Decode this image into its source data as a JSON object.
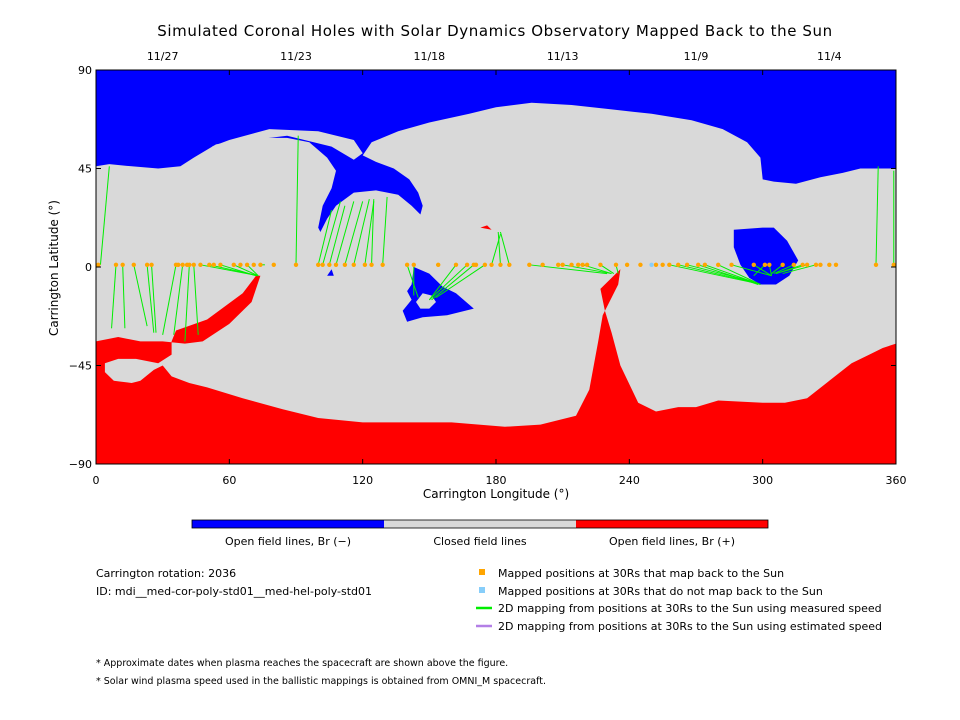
{
  "chart_data": {
    "type": "heatmap",
    "title": "Simulated Coronal Holes with Solar Dynamics Observatory Mapped Back to the Sun",
    "xlabel": "Carrington Longitude (°)",
    "ylabel": "Carrington Latitude (°)",
    "xlim": [
      0,
      360
    ],
    "ylim": [
      -90,
      90
    ],
    "x_ticks": [
      "0",
      "60",
      "120",
      "180",
      "240",
      "300",
      "360"
    ],
    "y_ticks": [
      "90",
      "45",
      "0",
      "−45",
      "−90"
    ],
    "top_date_ticks": [
      {
        "lon": 30,
        "label": "11/27"
      },
      {
        "lon": 90,
        "label": "11/23"
      },
      {
        "lon": 150,
        "label": "11/18"
      },
      {
        "lon": 210,
        "label": "11/13"
      },
      {
        "lon": 270,
        "label": "11/9"
      },
      {
        "lon": 330,
        "label": "11/4"
      }
    ],
    "regions": [
      {
        "name": "Open field lines, Br (−)",
        "color": "#0000ff"
      },
      {
        "name": "Closed field lines",
        "color": "#d9d9d9"
      },
      {
        "name": "Open field lines, Br (+)",
        "color": "#ff0000"
      }
    ],
    "mapped_points_lon": [
      1,
      9,
      12,
      17,
      23,
      25,
      36,
      37,
      39,
      41,
      42,
      44,
      47,
      51,
      53,
      56,
      62,
      65,
      68,
      71,
      74,
      80,
      90,
      100,
      102,
      105,
      108,
      112,
      116,
      121,
      124,
      129,
      140,
      143,
      154,
      162,
      167,
      170,
      171,
      175,
      178,
      182,
      186,
      195,
      201,
      208,
      210,
      214,
      217,
      219,
      221,
      227,
      234,
      239,
      245,
      252,
      255,
      258,
      262,
      266,
      271,
      274,
      280,
      286,
      296,
      301,
      303,
      309,
      314,
      318,
      320,
      324,
      326,
      330,
      333,
      351,
      359
    ],
    "unmapped_points_lon": [
      250
    ],
    "point_lat": 1,
    "mapping_lines": [
      [
        2,
        1,
        6,
        46
      ],
      [
        9,
        1,
        7,
        -28
      ],
      [
        12,
        1,
        13,
        -28
      ],
      [
        17,
        1,
        23,
        -27
      ],
      [
        23,
        1,
        26,
        -30
      ],
      [
        25,
        1,
        27,
        -30
      ],
      [
        36,
        1,
        30,
        -31
      ],
      [
        39,
        1,
        35,
        -31
      ],
      [
        42,
        1,
        40,
        -34
      ],
      [
        44,
        1,
        46,
        -31
      ],
      [
        47,
        1,
        73,
        -4
      ],
      [
        51,
        1,
        73,
        -4
      ],
      [
        56,
        1,
        72,
        -4
      ],
      [
        62,
        1,
        73,
        -4
      ],
      [
        68,
        1,
        73,
        -4
      ],
      [
        74,
        1,
        76,
        1
      ],
      [
        90,
        1,
        91,
        60
      ],
      [
        100,
        1,
        106,
        26
      ],
      [
        102,
        1,
        110,
        30
      ],
      [
        105,
        1,
        112,
        28
      ],
      [
        108,
        1,
        116,
        30
      ],
      [
        112,
        1,
        120,
        30
      ],
      [
        116,
        1,
        123,
        31
      ],
      [
        121,
        1,
        125,
        30
      ],
      [
        124,
        1,
        125,
        31
      ],
      [
        129,
        1,
        131,
        32
      ],
      [
        140,
        1,
        145,
        -14
      ],
      [
        143,
        1,
        143,
        -13
      ],
      [
        154,
        1,
        153,
        1
      ],
      [
        162,
        1,
        150,
        -15
      ],
      [
        167,
        1,
        150,
        -15
      ],
      [
        170,
        1,
        151,
        -15
      ],
      [
        175,
        1,
        153,
        -14
      ],
      [
        178,
        1,
        182,
        15
      ],
      [
        182,
        1,
        181,
        16
      ],
      [
        186,
        1,
        182,
        16
      ],
      [
        195,
        1,
        230,
        -3
      ],
      [
        210,
        1,
        232,
        -3
      ],
      [
        219,
        1,
        232,
        -3
      ],
      [
        227,
        1,
        233,
        -3
      ],
      [
        234,
        1,
        235,
        -3
      ],
      [
        258,
        1,
        295,
        -7
      ],
      [
        262,
        1,
        296,
        -7
      ],
      [
        266,
        1,
        297,
        -7
      ],
      [
        271,
        1,
        298,
        -8
      ],
      [
        274,
        1,
        299,
        -8
      ],
      [
        280,
        1,
        299,
        -8
      ],
      [
        286,
        1,
        304,
        -4
      ],
      [
        296,
        1,
        304,
        -4
      ],
      [
        301,
        1,
        296,
        -4
      ],
      [
        303,
        1,
        304,
        -4
      ],
      [
        309,
        1,
        304,
        -3
      ],
      [
        314,
        1,
        305,
        -3
      ],
      [
        318,
        1,
        306,
        -3
      ],
      [
        320,
        1,
        306,
        -3
      ],
      [
        324,
        1,
        309,
        -3
      ],
      [
        351,
        1,
        352,
        46
      ],
      [
        359,
        1,
        359,
        44
      ]
    ]
  },
  "legend_bar": {
    "neg_label": "Open field lines, Br (−)",
    "closed_label": "Closed field lines",
    "pos_label": "Open field lines, Br (+)"
  },
  "info": {
    "rotation": "Carrington rotation: 2036",
    "id": "ID: mdi__med-cor-poly-std01__med-hel-poly-std01"
  },
  "legend": {
    "mapped": {
      "label": "Mapped positions at 30Rs that map back to the Sun",
      "color": "#ffa500"
    },
    "unmapped": {
      "label": "Mapped positions at 30Rs that do not map back to the Sun",
      "color": "#87cefa"
    },
    "measured": {
      "label": "2D mapping from positions at 30Rs to the Sun using measured speed",
      "color": "#00ee00"
    },
    "estimated": {
      "label": "2D mapping from positions at 30Rs to the Sun using estimated speed",
      "color": "#b37fe6"
    }
  },
  "notes": [
    "* Approximate dates when plasma reaches the spacecraft are shown above the figure.",
    "* Solar wind plasma speed used in the ballistic mappings is obtained from OMNI_M spacecraft."
  ]
}
